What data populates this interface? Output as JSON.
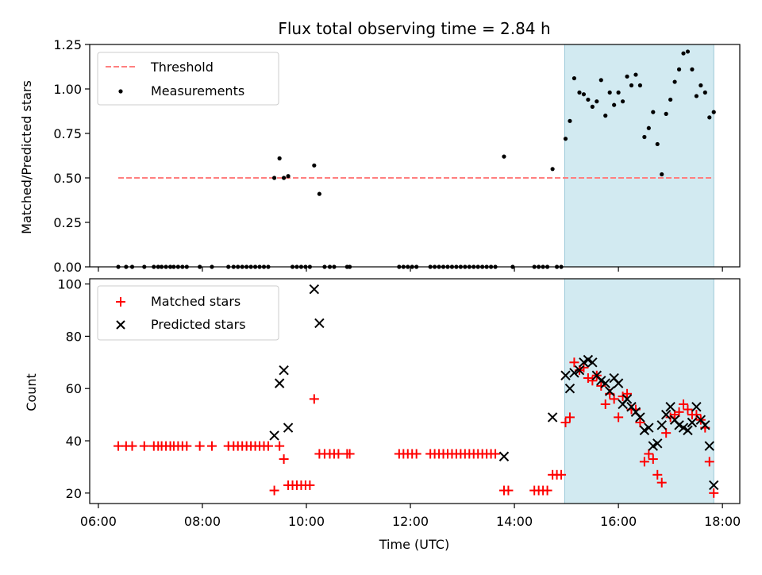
{
  "title": "Flux total observing time = 2.84 h",
  "chart_data": [
    {
      "type": "scatter",
      "ylabel": "Matched/Predicted stars",
      "ylim": [
        0,
        1.25
      ],
      "yticks": [
        "0.00",
        "0.25",
        "0.50",
        "0.75",
        "1.00",
        "1.25"
      ],
      "legend_position": "upper-left",
      "threshold": {
        "name": "Threshold",
        "value": 0.5,
        "x_range": [
          "06:23",
          "17:50"
        ],
        "color": "#ff7f7f"
      },
      "shaded_region": {
        "x_range": [
          "14:58",
          "17:50"
        ],
        "color": "#add8e6"
      },
      "series": [
        {
          "name": "Measurements",
          "color": "#000000",
          "marker": "dot",
          "points": [
            [
              "06:23",
              0
            ],
            [
              "06:32",
              0
            ],
            [
              "06:39",
              0
            ],
            [
              "06:53",
              0
            ],
            [
              "07:04",
              0
            ],
            [
              "07:09",
              0
            ],
            [
              "07:13",
              0
            ],
            [
              "07:18",
              0
            ],
            [
              "07:23",
              0
            ],
            [
              "07:27",
              0
            ],
            [
              "07:32",
              0
            ],
            [
              "07:37",
              0
            ],
            [
              "07:42",
              0
            ],
            [
              "07:57",
              0
            ],
            [
              "08:11",
              0
            ],
            [
              "08:30",
              0
            ],
            [
              "08:36",
              0
            ],
            [
              "08:41",
              0
            ],
            [
              "08:46",
              0
            ],
            [
              "08:51",
              0
            ],
            [
              "08:56",
              0
            ],
            [
              "09:01",
              0
            ],
            [
              "09:06",
              0
            ],
            [
              "09:11",
              0
            ],
            [
              "09:16",
              0
            ],
            [
              "09:23",
              0.5
            ],
            [
              "09:29",
              0.61
            ],
            [
              "09:34",
              0.5
            ],
            [
              "09:39",
              0.51
            ],
            [
              "09:44",
              0
            ],
            [
              "09:49",
              0
            ],
            [
              "09:54",
              0
            ],
            [
              "09:59",
              0
            ],
            [
              "10:04",
              0
            ],
            [
              "10:09",
              0.57
            ],
            [
              "10:15",
              0.41
            ],
            [
              "10:21",
              0
            ],
            [
              "10:27",
              0
            ],
            [
              "10:32",
              0
            ],
            [
              "10:47",
              0
            ],
            [
              "10:50",
              0
            ],
            [
              "11:47",
              0
            ],
            [
              "11:52",
              0
            ],
            [
              "11:57",
              0
            ],
            [
              "12:02",
              0
            ],
            [
              "12:07",
              0
            ],
            [
              "12:23",
              0
            ],
            [
              "12:28",
              0
            ],
            [
              "12:33",
              0
            ],
            [
              "12:38",
              0
            ],
            [
              "12:43",
              0
            ],
            [
              "12:48",
              0
            ],
            [
              "12:53",
              0
            ],
            [
              "12:58",
              0
            ],
            [
              "13:03",
              0
            ],
            [
              "13:08",
              0
            ],
            [
              "13:13",
              0
            ],
            [
              "13:18",
              0
            ],
            [
              "13:23",
              0
            ],
            [
              "13:28",
              0
            ],
            [
              "13:33",
              0
            ],
            [
              "13:38",
              0
            ],
            [
              "13:48",
              0.62
            ],
            [
              "13:58",
              0
            ],
            [
              "14:23",
              0
            ],
            [
              "14:28",
              0
            ],
            [
              "14:33",
              0
            ],
            [
              "14:38",
              0
            ],
            [
              "14:44",
              0.55
            ],
            [
              "14:49",
              0
            ],
            [
              "14:54",
              0
            ],
            [
              "14:59",
              0.72
            ],
            [
              "15:04",
              0.82
            ],
            [
              "15:09",
              1.06
            ],
            [
              "15:15",
              0.98
            ],
            [
              "15:20",
              0.97
            ],
            [
              "15:25",
              0.94
            ],
            [
              "15:30",
              0.9
            ],
            [
              "15:35",
              0.93
            ],
            [
              "15:40",
              1.05
            ],
            [
              "15:45",
              0.85
            ],
            [
              "15:50",
              0.98
            ],
            [
              "15:55",
              0.91
            ],
            [
              "16:00",
              0.98
            ],
            [
              "16:05",
              0.93
            ],
            [
              "16:10",
              1.07
            ],
            [
              "16:15",
              1.02
            ],
            [
              "16:20",
              1.08
            ],
            [
              "16:25",
              1.02
            ],
            [
              "16:30",
              0.73
            ],
            [
              "16:35",
              0.78
            ],
            [
              "16:40",
              0.87
            ],
            [
              "16:45",
              0.69
            ],
            [
              "16:50",
              0.52
            ],
            [
              "16:55",
              0.86
            ],
            [
              "17:00",
              0.94
            ],
            [
              "17:05",
              1.04
            ],
            [
              "17:10",
              1.11
            ],
            [
              "17:15",
              1.2
            ],
            [
              "17:20",
              1.21
            ],
            [
              "17:25",
              1.11
            ],
            [
              "17:30",
              0.96
            ],
            [
              "17:35",
              1.02
            ],
            [
              "17:40",
              0.98
            ],
            [
              "17:45",
              0.84
            ],
            [
              "17:50",
              0.87
            ]
          ]
        }
      ]
    },
    {
      "type": "scatter",
      "xlabel": "Time (UTC)",
      "ylabel": "Count",
      "ylim": [
        16,
        102
      ],
      "yticks": [
        "20",
        "40",
        "60",
        "80",
        "100"
      ],
      "xticks": [
        "06:00",
        "08:00",
        "10:00",
        "12:00",
        "14:00",
        "16:00",
        "18:00"
      ],
      "xlim": [
        "05:50",
        "18:20"
      ],
      "legend_position": "upper-left",
      "shaded_region": {
        "x_range": [
          "14:58",
          "17:50"
        ],
        "color": "#add8e6"
      },
      "series": [
        {
          "name": "Matched stars",
          "color": "#ff0000",
          "marker": "plus",
          "points": [
            [
              "06:23",
              38
            ],
            [
              "06:32",
              38
            ],
            [
              "06:39",
              38
            ],
            [
              "06:53",
              38
            ],
            [
              "07:04",
              38
            ],
            [
              "07:09",
              38
            ],
            [
              "07:13",
              38
            ],
            [
              "07:18",
              38
            ],
            [
              "07:23",
              38
            ],
            [
              "07:27",
              38
            ],
            [
              "07:32",
              38
            ],
            [
              "07:37",
              38
            ],
            [
              "07:42",
              38
            ],
            [
              "07:57",
              38
            ],
            [
              "08:11",
              38
            ],
            [
              "08:30",
              38
            ],
            [
              "08:36",
              38
            ],
            [
              "08:41",
              38
            ],
            [
              "08:46",
              38
            ],
            [
              "08:51",
              38
            ],
            [
              "08:56",
              38
            ],
            [
              "09:01",
              38
            ],
            [
              "09:06",
              38
            ],
            [
              "09:11",
              38
            ],
            [
              "09:16",
              38
            ],
            [
              "09:23",
              21
            ],
            [
              "09:29",
              38
            ],
            [
              "09:34",
              33
            ],
            [
              "09:39",
              23
            ],
            [
              "09:44",
              23
            ],
            [
              "09:49",
              23
            ],
            [
              "09:54",
              23
            ],
            [
              "09:59",
              23
            ],
            [
              "10:04",
              23
            ],
            [
              "10:09",
              56
            ],
            [
              "10:15",
              35
            ],
            [
              "10:21",
              35
            ],
            [
              "10:27",
              35
            ],
            [
              "10:32",
              35
            ],
            [
              "10:37",
              35
            ],
            [
              "10:47",
              35
            ],
            [
              "10:50",
              35
            ],
            [
              "11:47",
              35
            ],
            [
              "11:52",
              35
            ],
            [
              "11:57",
              35
            ],
            [
              "12:02",
              35
            ],
            [
              "12:07",
              35
            ],
            [
              "12:23",
              35
            ],
            [
              "12:28",
              35
            ],
            [
              "12:33",
              35
            ],
            [
              "12:38",
              35
            ],
            [
              "12:43",
              35
            ],
            [
              "12:48",
              35
            ],
            [
              "12:53",
              35
            ],
            [
              "12:58",
              35
            ],
            [
              "13:03",
              35
            ],
            [
              "13:08",
              35
            ],
            [
              "13:13",
              35
            ],
            [
              "13:18",
              35
            ],
            [
              "13:23",
              35
            ],
            [
              "13:28",
              35
            ],
            [
              "13:33",
              35
            ],
            [
              "13:38",
              35
            ],
            [
              "13:48",
              21
            ],
            [
              "13:53",
              21
            ],
            [
              "14:23",
              21
            ],
            [
              "14:28",
              21
            ],
            [
              "14:33",
              21
            ],
            [
              "14:38",
              21
            ],
            [
              "14:44",
              27
            ],
            [
              "14:49",
              27
            ],
            [
              "14:54",
              27
            ],
            [
              "14:59",
              47
            ],
            [
              "15:04",
              49
            ],
            [
              "15:09",
              70
            ],
            [
              "15:15",
              67
            ],
            [
              "15:20",
              68
            ],
            [
              "15:25",
              64
            ],
            [
              "15:30",
              63
            ],
            [
              "15:35",
              65
            ],
            [
              "15:40",
              61
            ],
            [
              "15:45",
              54
            ],
            [
              "15:50",
              58
            ],
            [
              "15:55",
              56
            ],
            [
              "16:00",
              49
            ],
            [
              "16:05",
              57
            ],
            [
              "16:10",
              58
            ],
            [
              "16:15",
              52
            ],
            [
              "16:20",
              52
            ],
            [
              "16:25",
              47
            ],
            [
              "16:30",
              32
            ],
            [
              "16:35",
              35
            ],
            [
              "16:40",
              33
            ],
            [
              "16:45",
              27
            ],
            [
              "16:50",
              24
            ],
            [
              "16:55",
              43
            ],
            [
              "17:00",
              49
            ],
            [
              "17:05",
              50
            ],
            [
              "17:10",
              51
            ],
            [
              "17:15",
              54
            ],
            [
              "17:20",
              52
            ],
            [
              "17:25",
              50
            ],
            [
              "17:30",
              50
            ],
            [
              "17:35",
              48
            ],
            [
              "17:40",
              45
            ],
            [
              "17:45",
              32
            ],
            [
              "17:50",
              20
            ]
          ]
        },
        {
          "name": "Predicted stars",
          "color": "#000000",
          "marker": "x",
          "points": [
            [
              "09:23",
              42
            ],
            [
              "09:29",
              62
            ],
            [
              "09:34",
              67
            ],
            [
              "09:39",
              45
            ],
            [
              "10:09",
              98
            ],
            [
              "10:15",
              85
            ],
            [
              "13:48",
              34
            ],
            [
              "14:44",
              49
            ],
            [
              "14:59",
              65
            ],
            [
              "15:04",
              60
            ],
            [
              "15:09",
              66
            ],
            [
              "15:15",
              67
            ],
            [
              "15:20",
              70
            ],
            [
              "15:25",
              71
            ],
            [
              "15:30",
              70
            ],
            [
              "15:35",
              65
            ],
            [
              "15:40",
              63
            ],
            [
              "15:45",
              62
            ],
            [
              "15:50",
              59
            ],
            [
              "15:55",
              64
            ],
            [
              "16:00",
              62
            ],
            [
              "16:05",
              54
            ],
            [
              "16:10",
              56
            ],
            [
              "16:15",
              53
            ],
            [
              "16:20",
              51
            ],
            [
              "16:25",
              49
            ],
            [
              "16:30",
              44
            ],
            [
              "16:35",
              45
            ],
            [
              "16:40",
              38
            ],
            [
              "16:45",
              39
            ],
            [
              "16:50",
              46
            ],
            [
              "16:55",
              50
            ],
            [
              "17:00",
              53
            ],
            [
              "17:05",
              48
            ],
            [
              "17:10",
              46
            ],
            [
              "17:15",
              45
            ],
            [
              "17:20",
              44
            ],
            [
              "17:25",
              47
            ],
            [
              "17:30",
              53
            ],
            [
              "17:35",
              48
            ],
            [
              "17:40",
              46
            ],
            [
              "17:45",
              38
            ],
            [
              "17:50",
              23
            ]
          ]
        }
      ]
    }
  ]
}
